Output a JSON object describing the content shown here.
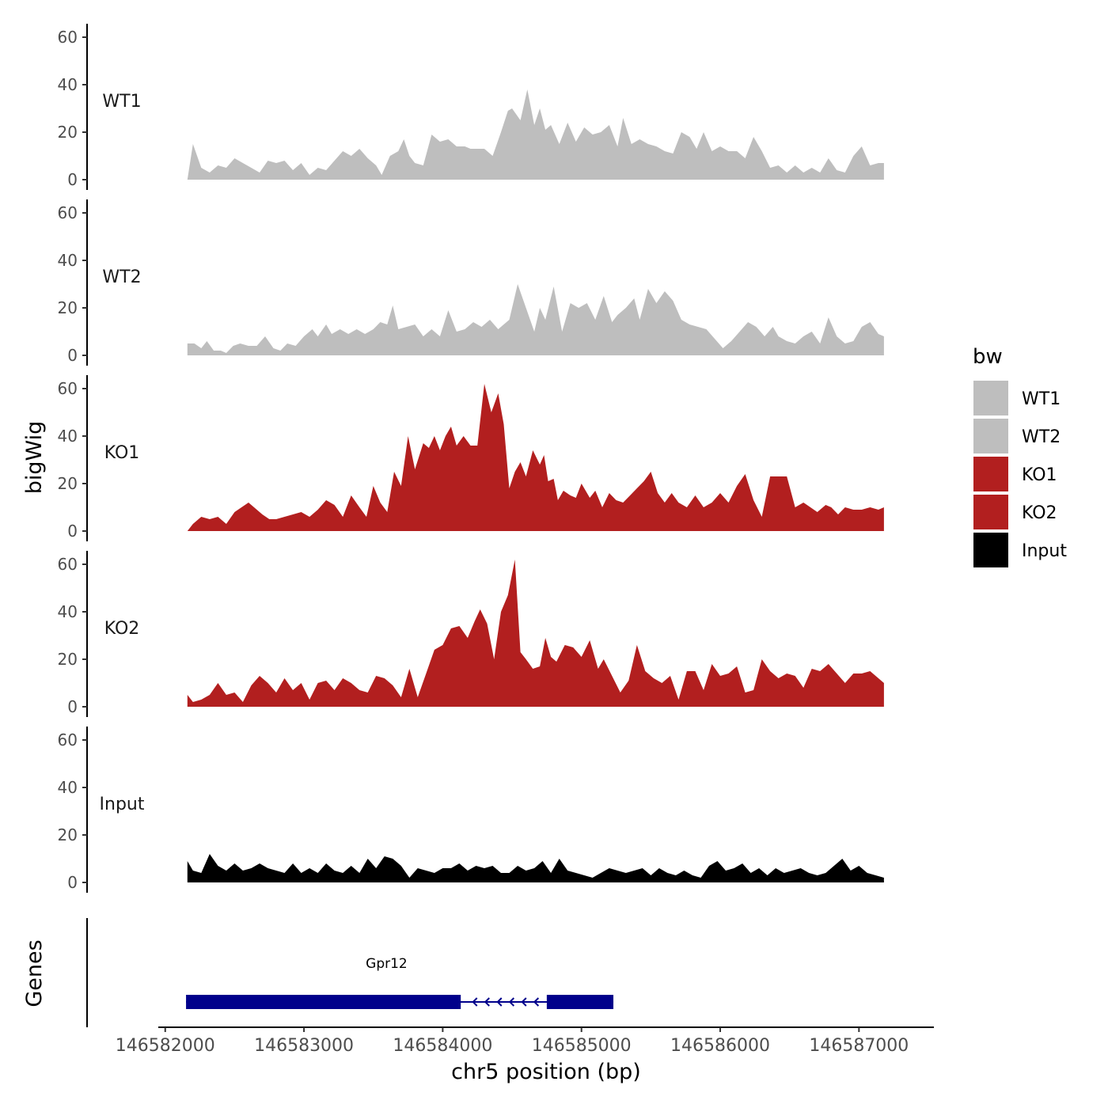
{
  "chart_data": {
    "type": "area",
    "ylabel": "bigWig",
    "xlabel": "chr5 position (bp)",
    "xlim": [
      146581950,
      146587540
    ],
    "xticks": [
      146582000,
      146583000,
      146584000,
      146585000,
      146586000,
      146587000
    ],
    "xtick_labels": [
      "146582000",
      "146583000",
      "146584000",
      "146585000",
      "146586000",
      "146587000"
    ],
    "ylim": [
      0,
      65
    ],
    "yticks": [
      0,
      20,
      40,
      60
    ],
    "ytick_labels": [
      "0",
      "20",
      "40",
      "60"
    ],
    "legend": {
      "title": "bw",
      "position": "right"
    },
    "series": [
      {
        "name": "WT1",
        "color": "#bebebe",
        "x": [
          146582160,
          146582200,
          146582260,
          146582320,
          146582380,
          146582440,
          146582500,
          146582560,
          146582620,
          146582680,
          146582740,
          146582800,
          146582860,
          146582920,
          146582980,
          146583040,
          146583100,
          146583160,
          146583220,
          146583280,
          146583340,
          146583400,
          146583460,
          146583520,
          146583560,
          146583620,
          146583680,
          146583720,
          146583760,
          146583800,
          146583860,
          146583920,
          146583980,
          146584040,
          146584100,
          146584160,
          146584200,
          146584260,
          146584300,
          146584360,
          146584420,
          146584470,
          146584500,
          146584560,
          146584610,
          146584660,
          146584700,
          146584740,
          146584780,
          146584840,
          146584900,
          146584960,
          146585020,
          146585080,
          146585140,
          146585200,
          146585260,
          146585300,
          146585360,
          146585420,
          146585480,
          146585540,
          146585600,
          146585660,
          146585720,
          146585780,
          146585830,
          146585880,
          146585940,
          146586000,
          146586060,
          146586120,
          146586180,
          146586240,
          146586300,
          146586360,
          146586420,
          146586480,
          146586540,
          146586600,
          146586660,
          146586720,
          146586780,
          146586840,
          146586900,
          146586960,
          146587020,
          146587080,
          146587140,
          146587180
        ],
        "values": [
          0,
          15,
          5,
          3,
          6,
          5,
          9,
          7,
          5,
          3,
          8,
          7,
          8,
          4,
          7,
          2,
          5,
          4,
          8,
          12,
          10,
          13,
          9,
          6,
          2,
          10,
          12,
          17,
          10,
          7,
          6,
          19,
          16,
          17,
          14,
          14,
          13,
          13,
          13,
          10,
          20,
          29,
          30,
          25,
          38,
          23,
          30,
          21,
          23,
          15,
          24,
          16,
          22,
          19,
          20,
          23,
          14,
          26,
          15,
          17,
          15,
          14,
          12,
          11,
          20,
          18,
          13,
          20,
          12,
          14,
          12,
          12,
          9,
          18,
          12,
          5,
          6,
          3,
          6,
          3,
          5,
          3,
          9,
          4,
          3,
          10,
          14,
          6,
          7,
          7
        ]
      },
      {
        "name": "WT2",
        "color": "#bebebe",
        "x": [
          146582160,
          146582210,
          146582260,
          146582300,
          146582350,
          146582400,
          146582440,
          146582490,
          146582540,
          146582600,
          146582660,
          146582720,
          146582780,
          146582830,
          146582880,
          146582940,
          146583000,
          146583060,
          146583100,
          146583160,
          146583200,
          146583260,
          146583320,
          146583380,
          146583440,
          146583500,
          146583550,
          146583600,
          146583640,
          146583680,
          146583740,
          146583800,
          146583860,
          146583920,
          146583980,
          146584040,
          146584100,
          146584160,
          146584220,
          146584280,
          146584340,
          146584400,
          146584440,
          146584480,
          146584540,
          146584600,
          146584660,
          146584700,
          146584740,
          146584800,
          146584860,
          146584920,
          146584980,
          146585040,
          146585100,
          146585160,
          146585220,
          146585260,
          146585320,
          146585380,
          146585420,
          146585480,
          146585540,
          146585600,
          146585660,
          146585720,
          146585780,
          146585840,
          146585900,
          146585960,
          146586020,
          146586080,
          146586140,
          146586200,
          146586260,
          146586320,
          146586380,
          146586420,
          146586480,
          146586540,
          146586600,
          146586660,
          146586720,
          146586780,
          146586840,
          146586900,
          146586960,
          146587020,
          146587080,
          146587140,
          146587180
        ],
        "values": [
          5,
          5,
          3,
          6,
          2,
          2,
          1,
          4,
          5,
          4,
          4,
          8,
          3,
          2,
          5,
          4,
          8,
          11,
          8,
          13,
          9,
          11,
          9,
          11,
          9,
          11,
          14,
          13,
          21,
          11,
          12,
          13,
          8,
          11,
          8,
          19,
          10,
          11,
          14,
          12,
          15,
          11,
          13,
          15,
          30,
          20,
          10,
          20,
          15,
          29,
          10,
          22,
          20,
          22,
          15,
          25,
          14,
          17,
          20,
          24,
          15,
          28,
          22,
          27,
          23,
          15,
          13,
          12,
          11,
          7,
          3,
          6,
          10,
          14,
          12,
          8,
          12,
          8,
          6,
          5,
          8,
          10,
          5,
          16,
          8,
          5,
          6,
          12,
          14,
          9,
          8
        ]
      },
      {
        "name": "KO1",
        "color": "#b21f1f",
        "x": [
          146582160,
          146582200,
          146582260,
          146582320,
          146582380,
          146582440,
          146582500,
          146582550,
          146582600,
          146582660,
          146582700,
          146582750,
          146582800,
          146582860,
          146582920,
          146582980,
          146583040,
          146583100,
          146583160,
          146583220,
          146583280,
          146583340,
          146583400,
          146583450,
          146583500,
          146583550,
          146583600,
          146583650,
          146583700,
          146583750,
          146583800,
          146583860,
          146583900,
          146583940,
          146583980,
          146584020,
          146584060,
          146584100,
          146584150,
          146584200,
          146584250,
          146584300,
          146584350,
          146584400,
          146584440,
          146584480,
          146584520,
          146584560,
          146584600,
          146584650,
          146584700,
          146584730,
          146584760,
          146584800,
          146584830,
          146584870,
          146584920,
          146584960,
          146585000,
          146585060,
          146585100,
          146585150,
          146585200,
          146585250,
          146585300,
          146585350,
          146585400,
          146585450,
          146585500,
          146585550,
          146585600,
          146585650,
          146585700,
          146585760,
          146585820,
          146585880,
          146585940,
          146586000,
          146586060,
          146586120,
          146586180,
          146586240,
          146586300,
          146586360,
          146586420,
          146586480,
          146586540,
          146586600,
          146586650,
          146586700,
          146586760,
          146586800,
          146586850,
          146586900,
          146586960,
          146587020,
          146587080,
          146587140,
          146587180
        ],
        "values": [
          0,
          3,
          6,
          5,
          6,
          3,
          8,
          10,
          12,
          9,
          7,
          5,
          5,
          6,
          7,
          8,
          6,
          9,
          13,
          11,
          6,
          15,
          10,
          6,
          19,
          12,
          8,
          25,
          19,
          40,
          26,
          37,
          35,
          40,
          34,
          40,
          44,
          36,
          40,
          36,
          36,
          62,
          50,
          58,
          45,
          18,
          25,
          29,
          23,
          34,
          28,
          32,
          21,
          22,
          13,
          17,
          15,
          14,
          20,
          14,
          17,
          10,
          16,
          13,
          12,
          15,
          18,
          21,
          25,
          16,
          12,
          16,
          12,
          10,
          15,
          10,
          12,
          16,
          12,
          19,
          24,
          13,
          6,
          23,
          23,
          23,
          10,
          12,
          10,
          8,
          11,
          10,
          7,
          10,
          9,
          9,
          10,
          9,
          10
        ]
      },
      {
        "name": "KO2",
        "color": "#b21f1f",
        "x": [
          146582160,
          146582200,
          146582260,
          146582320,
          146582380,
          146582440,
          146582500,
          146582560,
          146582620,
          146582680,
          146582740,
          146582800,
          146582860,
          146582920,
          146582980,
          146583040,
          146583100,
          146583160,
          146583220,
          146583280,
          146583340,
          146583400,
          146583460,
          146583520,
          146583580,
          146583640,
          146583700,
          146583760,
          146583820,
          146583880,
          146583940,
          146584000,
          146584060,
          146584120,
          146584180,
          146584230,
          146584270,
          146584320,
          146584370,
          146584420,
          146584470,
          146584520,
          146584560,
          146584600,
          146584650,
          146584700,
          146584740,
          146584780,
          146584820,
          146584880,
          146584940,
          146585000,
          146585060,
          146585120,
          146585160,
          146585220,
          146585280,
          146585340,
          146585400,
          146585460,
          146585520,
          146585580,
          146585640,
          146585700,
          146585760,
          146585820,
          146585880,
          146585940,
          146586000,
          146586060,
          146586120,
          146586180,
          146586240,
          146586300,
          146586360,
          146586420,
          146586480,
          146586540,
          146586600,
          146586660,
          146586720,
          146586780,
          146586840,
          146586900,
          146586960,
          146587020,
          146587080,
          146587140,
          146587180
        ],
        "values": [
          5,
          2,
          3,
          5,
          10,
          5,
          6,
          2,
          9,
          13,
          10,
          6,
          12,
          7,
          10,
          3,
          10,
          11,
          7,
          12,
          10,
          7,
          6,
          13,
          12,
          9,
          4,
          16,
          4,
          14,
          24,
          26,
          33,
          34,
          29,
          36,
          41,
          35,
          20,
          40,
          47,
          62,
          23,
          20,
          16,
          17,
          29,
          21,
          19,
          26,
          25,
          21,
          28,
          16,
          20,
          13,
          6,
          11,
          26,
          15,
          12,
          10,
          13,
          3,
          15,
          15,
          7,
          18,
          13,
          14,
          17,
          6,
          7,
          20,
          15,
          12,
          14,
          13,
          8,
          16,
          15,
          18,
          14,
          10,
          14,
          14,
          15,
          12,
          10
        ]
      },
      {
        "name": "Input",
        "color": "#000000",
        "x": [
          146582160,
          146582200,
          146582260,
          146582320,
          146582380,
          146582440,
          146582500,
          146582560,
          146582620,
          146582680,
          146582740,
          146582800,
          146582860,
          146582920,
          146582980,
          146583040,
          146583100,
          146583160,
          146583220,
          146583280,
          146583340,
          146583400,
          146583460,
          146583520,
          146583580,
          146583640,
          146583700,
          146583760,
          146583820,
          146583880,
          146583940,
          146584000,
          146584060,
          146584120,
          146584180,
          146584240,
          146584300,
          146584360,
          146584420,
          146584480,
          146584540,
          146584600,
          146584660,
          146584720,
          146584780,
          146584840,
          146584900,
          146584960,
          146585020,
          146585080,
          146585140,
          146585200,
          146585260,
          146585320,
          146585380,
          146585440,
          146585500,
          146585560,
          146585620,
          146585680,
          146585740,
          146585800,
          146585860,
          146585920,
          146585980,
          146586040,
          146586100,
          146586160,
          146586220,
          146586280,
          146586340,
          146586400,
          146586460,
          146586520,
          146586580,
          146586640,
          146586700,
          146586760,
          146586820,
          146586880,
          146586940,
          146587000,
          146587060,
          146587120,
          146587180
        ],
        "values": [
          9,
          5,
          4,
          12,
          7,
          5,
          8,
          5,
          6,
          8,
          6,
          5,
          4,
          8,
          4,
          6,
          4,
          8,
          5,
          4,
          7,
          4,
          10,
          6,
          11,
          10,
          7,
          2,
          6,
          5,
          4,
          6,
          6,
          8,
          5,
          7,
          6,
          7,
          4,
          4,
          7,
          5,
          6,
          9,
          4,
          10,
          5,
          4,
          3,
          2,
          4,
          6,
          5,
          4,
          5,
          6,
          3,
          6,
          4,
          3,
          5,
          3,
          2,
          7,
          9,
          5,
          6,
          8,
          4,
          6,
          3,
          6,
          4,
          5,
          6,
          4,
          3,
          4,
          7,
          10,
          5,
          7,
          4,
          3,
          2
        ]
      }
    ],
    "genes": [
      {
        "name": "Gpr12",
        "strand": "-",
        "start": 146582150,
        "end": 146585230,
        "exons": [
          [
            146582150,
            146584130
          ],
          [
            146584750,
            146585230
          ]
        ]
      }
    ]
  },
  "tracks": [
    "WT1",
    "WT2",
    "KO1",
    "KO2",
    "Input"
  ],
  "genes_panel_label": "Genes",
  "legend_items": [
    {
      "label": "WT1",
      "color": "#bebebe"
    },
    {
      "label": "WT2",
      "color": "#bebebe"
    },
    {
      "label": "KO1",
      "color": "#b21f1f"
    },
    {
      "label": "KO2",
      "color": "#b21f1f"
    },
    {
      "label": "Input",
      "color": "#000000"
    }
  ],
  "gene_color": "#00008b"
}
